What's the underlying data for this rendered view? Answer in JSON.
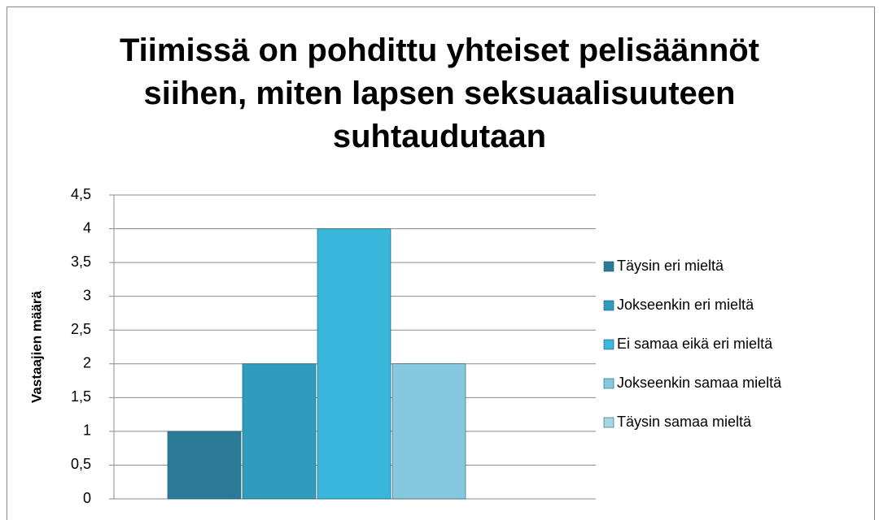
{
  "chart_data": {
    "type": "bar",
    "title": "Tiimissä on pohdittu yhteiset pelisäännöt siihen, miten lapsen seksuaalisuuteen suhtaudutaan",
    "y_label": "Vastaajien määrä",
    "categories": [
      null
    ],
    "series": [
      {
        "name": "Täysin eri mieltä",
        "color": "#2b7b98",
        "values": [
          1
        ]
      },
      {
        "name": "Jokseenkin eri mieltä",
        "color": "#2f9cbe",
        "values": [
          2
        ]
      },
      {
        "name": "Ei samaa eikä eri mieltä",
        "color": "#38b6dc",
        "values": [
          4
        ]
      },
      {
        "name": "Jokseenkin samaa mieltä",
        "color": "#86c9df",
        "values": [
          2
        ]
      },
      {
        "name": "Täysin samaa mieltä",
        "color": "#a8d6e4",
        "values": [
          0
        ]
      }
    ],
    "ylim": [
      0,
      4.5
    ],
    "yticks": [
      0,
      {
        "value": 0.5,
        "label": "0,5"
      },
      1,
      {
        "value": 1.5,
        "label": "1,5"
      },
      2,
      {
        "value": 2.5,
        "label": "2,5"
      },
      3,
      {
        "value": 3.5,
        "label": "3,5"
      },
      4,
      {
        "value": 4.5,
        "label": "4,5"
      }
    ],
    "grid": true,
    "legend": "right"
  }
}
